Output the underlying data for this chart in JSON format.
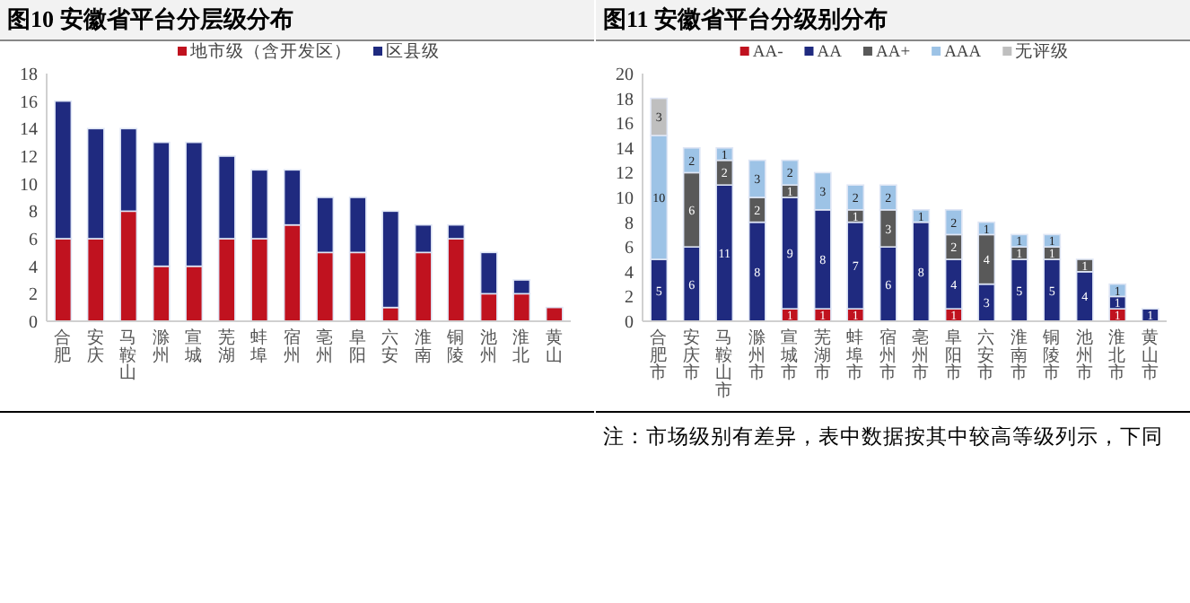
{
  "chart_data": [
    {
      "type": "bar",
      "title": "图10 安徽省平台分层级分布",
      "stacked": true,
      "legend": "top",
      "grid": false,
      "categories": [
        "合肥",
        "安庆",
        "马鞍山",
        "滁州",
        "宣城",
        "芜湖",
        "蚌埠",
        "宿州",
        "亳州",
        "阜阳",
        "六安",
        "淮南",
        "铜陵",
        "池州",
        "淮北",
        "黄山"
      ],
      "series": [
        {
          "name": "地市级（含开发区）",
          "color": "#c0121f",
          "values": [
            6,
            6,
            8,
            4,
            4,
            6,
            6,
            7,
            5,
            5,
            1,
            5,
            6,
            2,
            2,
            1
          ]
        },
        {
          "name": "区县级",
          "color": "#1f2a7f",
          "values": [
            10,
            8,
            6,
            9,
            9,
            6,
            5,
            4,
            4,
            4,
            7,
            2,
            1,
            3,
            1,
            null
          ]
        }
      ],
      "ylim": [
        0,
        18
      ],
      "yticks": [
        0,
        2,
        4,
        6,
        8,
        10,
        12,
        14,
        16,
        18
      ]
    },
    {
      "type": "bar",
      "title": "图11 安徽省平台分级别分布",
      "stacked": true,
      "legend": "top",
      "grid": false,
      "data_labels": true,
      "categories": [
        "合肥市",
        "安庆市",
        "马鞍山市",
        "滁州市",
        "宣城市",
        "芜湖市",
        "蚌埠市",
        "宿州市",
        "亳州市",
        "阜阳市",
        "六安市",
        "淮南市",
        "铜陵市",
        "池州市",
        "淮北市",
        "黄山市"
      ],
      "series": [
        {
          "name": "AA-",
          "color": "#c0121f",
          "values": [
            null,
            null,
            null,
            null,
            1,
            1,
            1,
            null,
            null,
            1,
            null,
            null,
            null,
            null,
            1,
            null
          ]
        },
        {
          "name": "AA",
          "color": "#1f2a7f",
          "values": [
            5,
            6,
            11,
            8,
            9,
            8,
            7,
            6,
            8,
            4,
            3,
            5,
            5,
            4,
            1,
            1
          ]
        },
        {
          "name": "AA+",
          "color": "#595959",
          "values": [
            null,
            6,
            2,
            2,
            1,
            null,
            1,
            3,
            null,
            2,
            4,
            1,
            1,
            1,
            null,
            null
          ]
        },
        {
          "name": "AAA",
          "color": "#9dc3e6",
          "values": [
            10,
            2,
            1,
            3,
            2,
            3,
            2,
            2,
            1,
            2,
            1,
            1,
            1,
            null,
            1,
            null
          ]
        },
        {
          "name": "无评级",
          "color": "#bfbfbf",
          "values": [
            3,
            null,
            null,
            null,
            null,
            null,
            null,
            null,
            null,
            null,
            null,
            null,
            null,
            null,
            null,
            null
          ]
        }
      ],
      "ylim": [
        0,
        20
      ],
      "yticks": [
        0,
        2,
        4,
        6,
        8,
        10,
        12,
        14,
        16,
        18,
        20
      ],
      "annotations": [
        "注：市场级别有差异，表中数据按其中较高等级列示，下同"
      ]
    }
  ]
}
